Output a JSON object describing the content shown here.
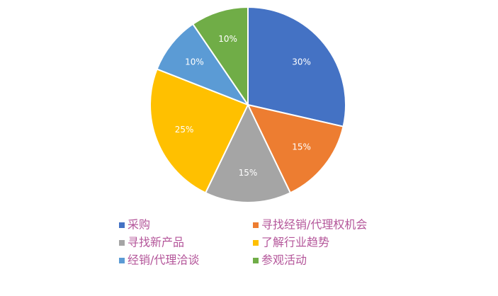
{
  "chart_data": {
    "type": "pie",
    "categories": [
      "采购",
      "寻找经销/代理权机会",
      "寻找新产品",
      "了解行业趋势",
      "经销/代理洽谈",
      "参观活动"
    ],
    "values": [
      30,
      15,
      15,
      25,
      10,
      10
    ],
    "value_labels": [
      "30%",
      "15%",
      "15%",
      "25%",
      "10%",
      "10%"
    ],
    "colors": [
      "#4472c4",
      "#ed7d31",
      "#a5a5a5",
      "#ffc000",
      "#5b9bd5",
      "#70ad47"
    ],
    "legend": "bottom"
  }
}
